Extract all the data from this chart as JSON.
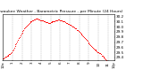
{
  "title": "Milwaukee Weather - Barometric Pressure - per Minute (24 Hours)",
  "bg_color": "#ffffff",
  "plot_bg_color": "#ffffff",
  "line_color": "#ff0000",
  "grid_color": "#888888",
  "title_color": "#000000",
  "tick_color": "#000000",
  "ylim": [
    29.35,
    30.25
  ],
  "yticks": [
    29.4,
    29.5,
    29.6,
    29.7,
    29.8,
    29.9,
    30.0,
    30.1,
    30.2
  ],
  "ylabel_fontsize": 3.0,
  "xlabel_fontsize": 3.0,
  "title_fontsize": 3.2,
  "y_values": [
    29.38,
    29.39,
    29.4,
    29.41,
    29.42,
    29.43,
    29.44,
    29.45,
    29.46,
    29.47,
    29.49,
    29.51,
    29.53,
    29.56,
    29.59,
    29.62,
    29.65,
    29.68,
    29.71,
    29.74,
    29.77,
    29.8,
    29.83,
    29.86,
    29.89,
    29.92,
    29.94,
    29.96,
    29.98,
    30.0,
    30.02,
    30.04,
    30.06,
    30.08,
    30.09,
    30.1,
    30.11,
    30.12,
    30.13,
    30.14,
    30.14,
    30.15,
    30.15,
    30.15,
    30.15,
    30.14,
    30.14,
    30.13,
    30.13,
    30.12,
    30.12,
    30.11,
    30.1,
    30.1,
    30.09,
    30.09,
    30.09,
    30.08,
    30.08,
    30.08,
    30.09,
    30.09,
    30.1,
    30.1,
    30.11,
    30.11,
    30.12,
    30.13,
    30.13,
    30.14,
    30.14,
    30.14,
    30.13,
    30.13,
    30.12,
    30.11,
    30.11,
    30.1,
    30.09,
    30.08,
    30.08,
    30.07,
    30.06,
    30.05,
    30.04,
    30.03,
    30.02,
    30.01,
    30.0,
    29.99,
    29.98,
    29.97,
    29.96,
    29.94,
    29.93,
    29.91,
    29.9,
    29.88,
    29.87,
    29.85,
    29.83,
    29.81,
    29.8,
    29.78,
    29.76,
    29.74,
    29.72,
    29.7,
    29.68,
    29.66,
    29.64,
    29.62,
    29.61,
    29.59,
    29.57,
    29.56,
    29.55,
    29.53,
    29.52,
    29.51,
    29.5,
    29.49,
    29.48,
    29.46,
    29.44,
    29.43,
    29.42,
    29.4,
    29.38,
    29.36,
    29.34,
    29.32,
    29.3,
    29.28,
    29.27,
    29.25,
    29.23,
    29.21
  ],
  "x_tick_positions": [
    0,
    12,
    24,
    36,
    48,
    60,
    72,
    84,
    96,
    108,
    120,
    132,
    140
  ],
  "x_tick_labels": [
    "12a",
    "1",
    "2",
    "3",
    "4",
    "5",
    "6",
    "7",
    "8",
    "9",
    "10",
    "11",
    "12p"
  ],
  "vgrid_positions": [
    12,
    24,
    36,
    48,
    60,
    72,
    84,
    96,
    108,
    120,
    132
  ]
}
